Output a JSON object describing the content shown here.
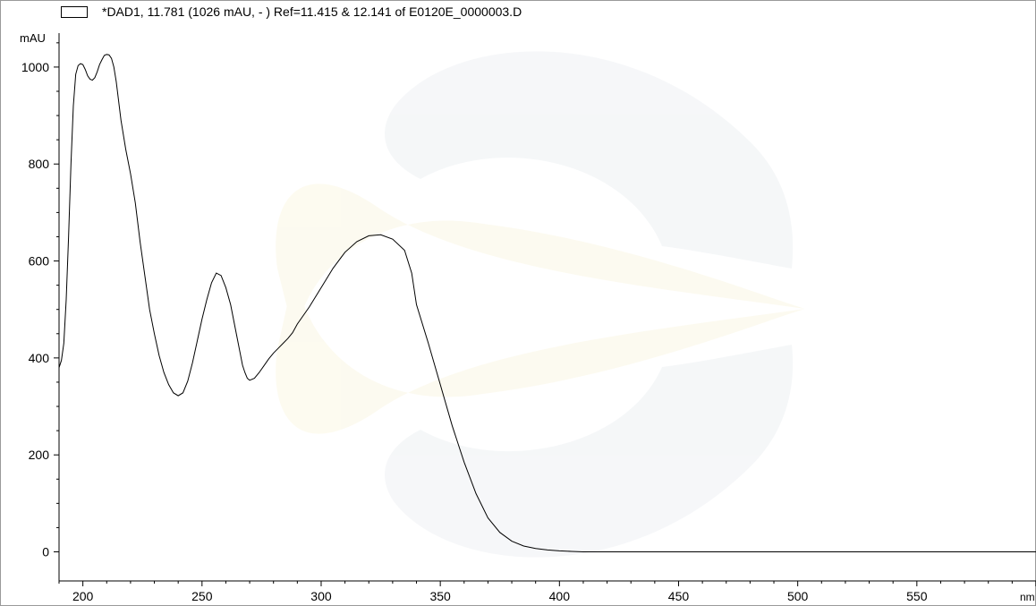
{
  "chart_data": {
    "type": "line",
    "title": "*DAD1, 11.781 (1026 mAU, - ) Ref=11.415 & 12.141 of E0120E_0000003.D",
    "ylabel": "mAU",
    "xlabel": "nm",
    "xlim": [
      190,
      600
    ],
    "ylim": [
      -60,
      1070
    ],
    "x_ticks": [
      200,
      250,
      300,
      350,
      400,
      450,
      500,
      550
    ],
    "y_ticks": [
      0,
      200,
      400,
      600,
      800,
      1000
    ],
    "grid": false,
    "legend": "top-left",
    "series": [
      {
        "color": "#000000",
        "x": [
          190,
          191,
          192,
          193,
          194,
          195,
          196,
          197,
          198,
          199,
          200,
          201,
          202,
          203,
          204,
          205,
          206,
          207,
          208,
          209,
          210,
          211,
          212,
          213,
          214,
          215,
          216,
          218,
          220,
          222,
          224,
          226,
          228,
          230,
          232,
          234,
          236,
          238,
          240,
          242,
          244,
          246,
          248,
          250,
          252,
          254,
          256,
          258,
          260,
          262,
          264,
          266,
          267,
          268,
          269,
          270,
          272,
          274,
          276,
          278,
          280,
          282,
          284,
          286,
          288,
          290,
          295,
          300,
          305,
          310,
          315,
          320,
          325,
          330,
          335,
          338,
          340,
          345,
          350,
          355,
          360,
          365,
          370,
          375,
          380,
          385,
          390,
          395,
          400,
          405,
          410,
          420,
          430,
          450,
          500,
          550,
          600
        ],
        "values": [
          380,
          395,
          430,
          520,
          650,
          800,
          920,
          985,
          1003,
          1007,
          1005,
          995,
          982,
          975,
          973,
          978,
          990,
          1005,
          1015,
          1024,
          1026,
          1025,
          1018,
          1000,
          970,
          930,
          890,
          830,
          780,
          720,
          640,
          570,
          500,
          450,
          405,
          370,
          345,
          328,
          322,
          328,
          352,
          390,
          435,
          480,
          520,
          555,
          575,
          570,
          545,
          510,
          460,
          410,
          385,
          370,
          358,
          354,
          358,
          370,
          384,
          398,
          410,
          420,
          430,
          440,
          452,
          470,
          505,
          545,
          585,
          618,
          640,
          652,
          654,
          645,
          622,
          575,
          510,
          430,
          345,
          260,
          185,
          120,
          70,
          40,
          22,
          12,
          7,
          4,
          2,
          1,
          0,
          0,
          0,
          0,
          0,
          0,
          0
        ]
      }
    ]
  }
}
